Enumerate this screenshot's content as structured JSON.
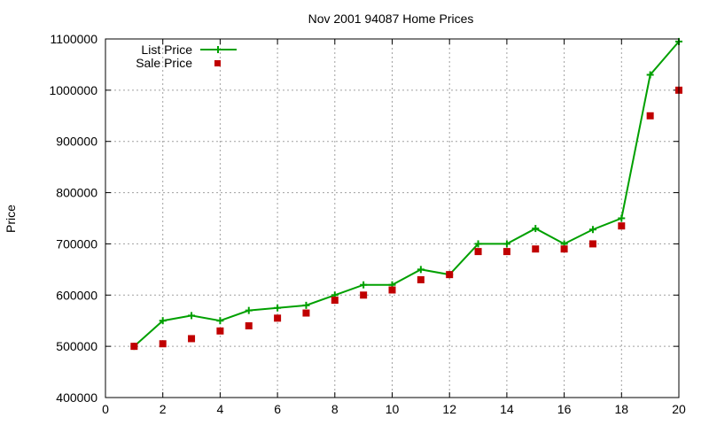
{
  "chart_data": {
    "type": "line",
    "title": "Nov 2001 94087 Home Prices",
    "xlabel": "",
    "ylabel": "Price",
    "xlim": [
      0,
      20
    ],
    "ylim": [
      400000,
      1100000
    ],
    "xticks": [
      0,
      2,
      4,
      6,
      8,
      10,
      12,
      14,
      16,
      18,
      20
    ],
    "yticks": [
      400000,
      500000,
      600000,
      700000,
      800000,
      900000,
      1000000,
      1100000
    ],
    "grid": true,
    "legend_position": "top-left",
    "series": [
      {
        "name": "List Price",
        "style": "line-with-plus-markers",
        "color": "#00a000",
        "x": [
          1,
          2,
          3,
          4,
          5,
          6,
          7,
          8,
          9,
          10,
          11,
          12,
          13,
          14,
          15,
          16,
          17,
          18,
          19,
          20
        ],
        "values": [
          500000,
          550000,
          560000,
          550000,
          570000,
          575000,
          580000,
          600000,
          620000,
          620000,
          650000,
          640000,
          700000,
          700000,
          730000,
          700000,
          728000,
          750000,
          1030000,
          1095000
        ]
      },
      {
        "name": "Sale Price",
        "style": "square-markers",
        "color": "#c00000",
        "x": [
          1,
          2,
          3,
          4,
          5,
          6,
          7,
          8,
          9,
          10,
          11,
          12,
          13,
          14,
          15,
          16,
          17,
          18,
          19,
          20
        ],
        "values": [
          500000,
          505000,
          515000,
          530000,
          540000,
          555000,
          565000,
          590000,
          600000,
          610000,
          630000,
          640000,
          685000,
          685000,
          690000,
          690000,
          700000,
          735000,
          950000,
          1000000
        ]
      }
    ]
  }
}
